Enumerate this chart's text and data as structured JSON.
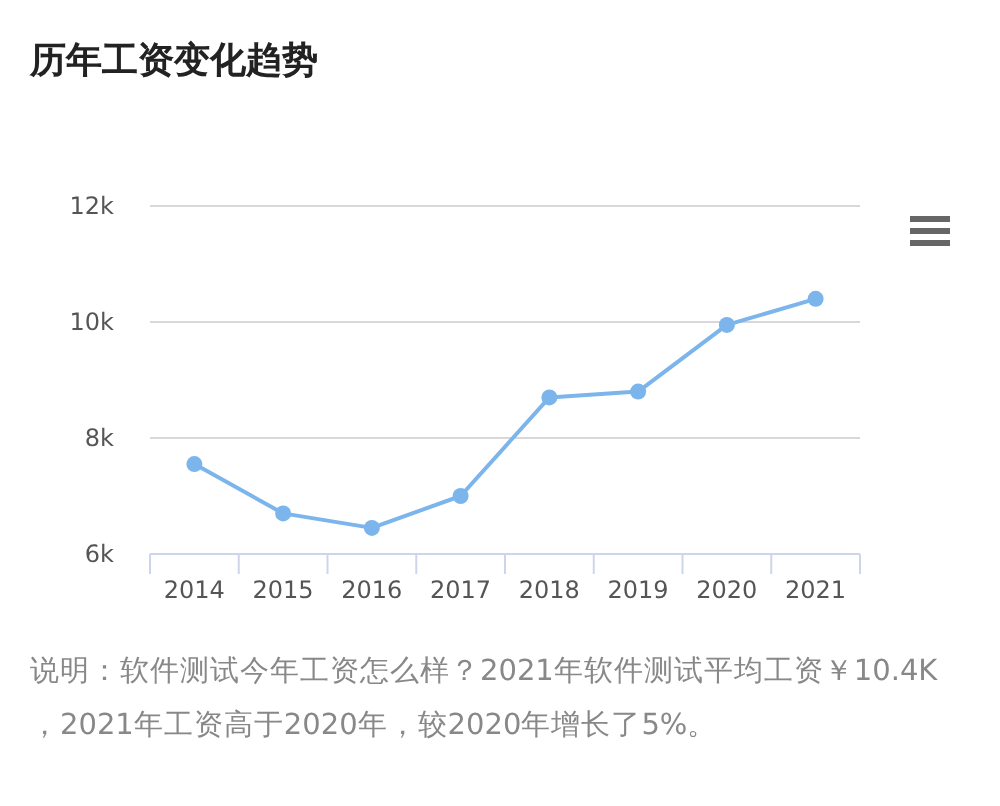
{
  "chart_data": {
    "type": "line",
    "title": "历年工资变化趋势",
    "categories": [
      "2014",
      "2015",
      "2016",
      "2017",
      "2018",
      "2019",
      "2020",
      "2021"
    ],
    "series": [
      {
        "color": "#7cb5ec",
        "values": [
          7550,
          6700,
          6450,
          7000,
          8700,
          8800,
          9950,
          10400
        ]
      }
    ],
    "ylim": [
      6000,
      12000
    ],
    "yticks": [
      {
        "value": 6000,
        "label": "6k"
      },
      {
        "value": 8000,
        "label": "8k"
      },
      {
        "value": 10000,
        "label": "10k"
      },
      {
        "value": 12000,
        "label": "12k"
      }
    ],
    "grid": "y",
    "marker": "circle",
    "line_style": "solid",
    "annotations": [
      "说明：软件测试今年工资怎么样？2021年软件测试平均工资￥10.4K，2021年工资高于2020年，较2020年增长了5%。"
    ]
  }
}
